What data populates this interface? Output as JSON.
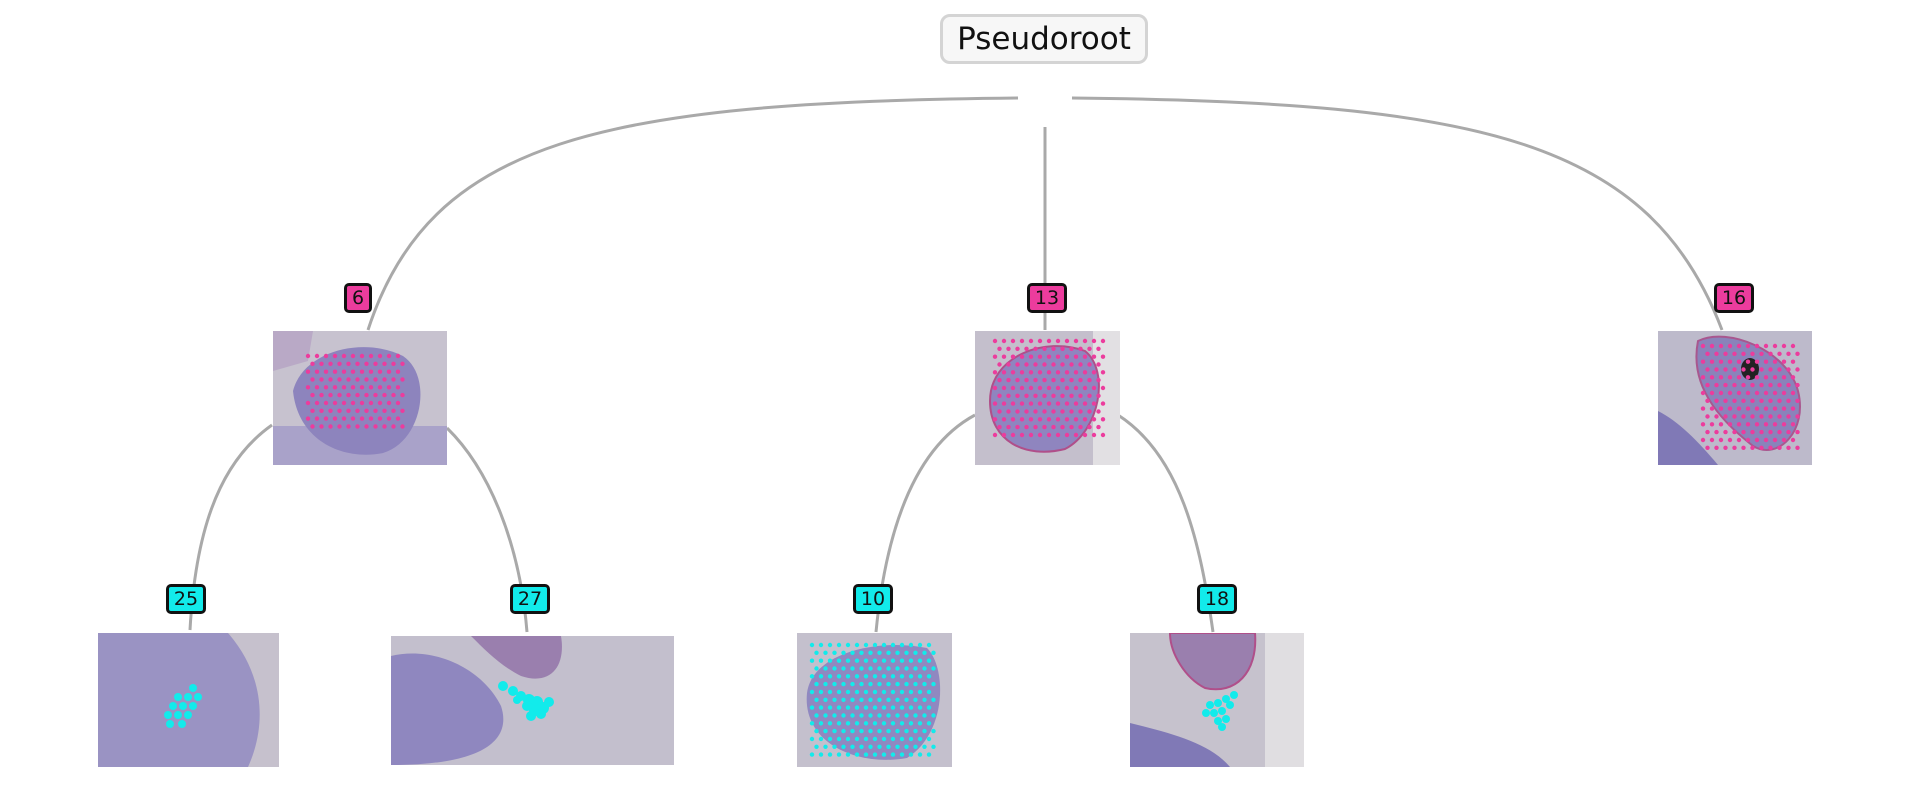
{
  "root": {
    "label": "Pseudoroot"
  },
  "level1": [
    {
      "id": "node-6",
      "label": "6",
      "color": "#ec3c9d"
    },
    {
      "id": "node-13",
      "label": "13",
      "color": "#ec3c9d"
    },
    {
      "id": "node-16",
      "label": "16",
      "color": "#ec3c9d"
    }
  ],
  "level2": [
    {
      "id": "node-25",
      "label": "25",
      "parent": "6",
      "color": "#12ebeb"
    },
    {
      "id": "node-27",
      "label": "27",
      "parent": "6",
      "color": "#12ebeb"
    },
    {
      "id": "node-10",
      "label": "10",
      "parent": "13",
      "color": "#12ebeb"
    },
    {
      "id": "node-18",
      "label": "18",
      "parent": "13",
      "color": "#12ebeb"
    }
  ],
  "colors": {
    "edge": "#a9a9a9",
    "tissue": "#8d84bd",
    "background": "#c9c4cf",
    "magenta_spots": "#ec3c9d",
    "cyan_spots": "#12ebeb"
  }
}
